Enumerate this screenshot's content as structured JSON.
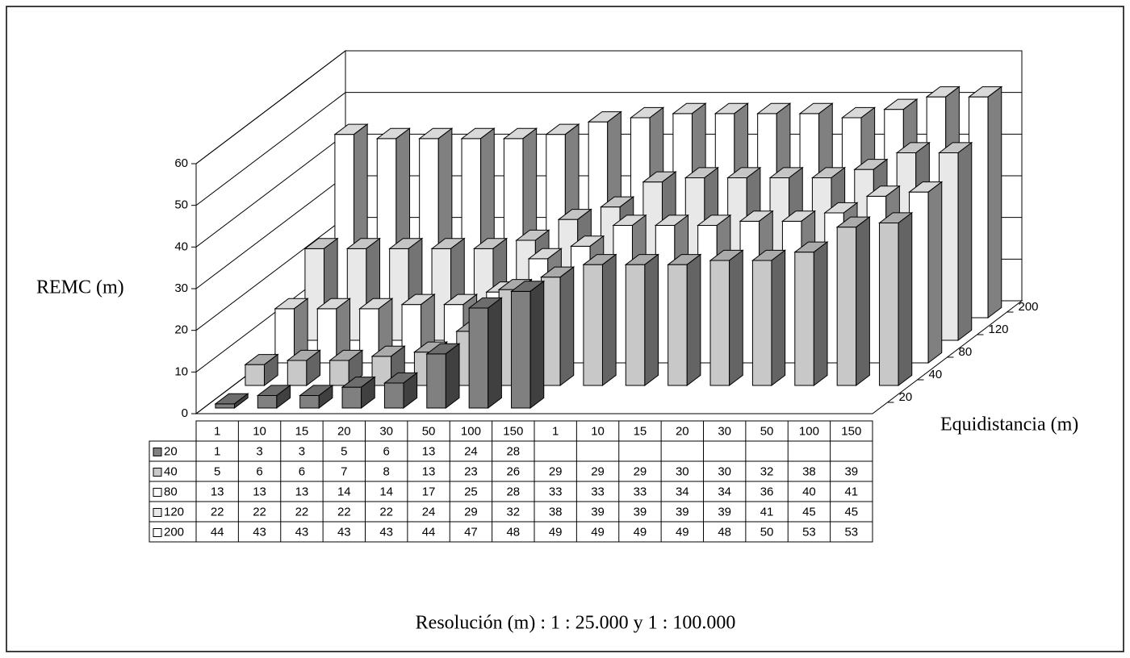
{
  "chart_data": {
    "type": "bar3d",
    "y_label": "REMC (m)",
    "depth_label": "Equidistancia (m)",
    "x_label": "Resolución (m) : 1 : 25.000 y 1 : 100.000",
    "categories": [
      "1",
      "10",
      "15",
      "20",
      "30",
      "50",
      "100",
      "150",
      "1",
      "10",
      "15",
      "20",
      "30",
      "50",
      "100",
      "150"
    ],
    "series": [
      {
        "name": "20",
        "color": "#808080",
        "values": [
          1,
          3,
          3,
          5,
          6,
          13,
          24,
          28,
          null,
          null,
          null,
          null,
          null,
          null,
          null,
          null
        ]
      },
      {
        "name": "40",
        "color": "#c8c8c8",
        "values": [
          5,
          6,
          6,
          7,
          8,
          13,
          23,
          26,
          29,
          29,
          29,
          30,
          30,
          32,
          38,
          39
        ]
      },
      {
        "name": "80",
        "color": "#ffffff",
        "values": [
          13,
          13,
          13,
          14,
          14,
          17,
          25,
          28,
          33,
          33,
          33,
          34,
          34,
          36,
          40,
          41
        ]
      },
      {
        "name": "120",
        "color": "#e8e8e8",
        "values": [
          22,
          22,
          22,
          22,
          22,
          24,
          29,
          32,
          38,
          39,
          39,
          39,
          39,
          41,
          45,
          45
        ]
      },
      {
        "name": "200",
        "color": "#ffffff",
        "values": [
          44,
          43,
          43,
          43,
          43,
          44,
          47,
          48,
          49,
          49,
          49,
          49,
          48,
          50,
          53,
          53
        ]
      }
    ],
    "ylim": [
      0,
      60
    ],
    "yticks": [
      0,
      10,
      20,
      30,
      40,
      50,
      60
    ],
    "grid": true,
    "legend": "table"
  }
}
